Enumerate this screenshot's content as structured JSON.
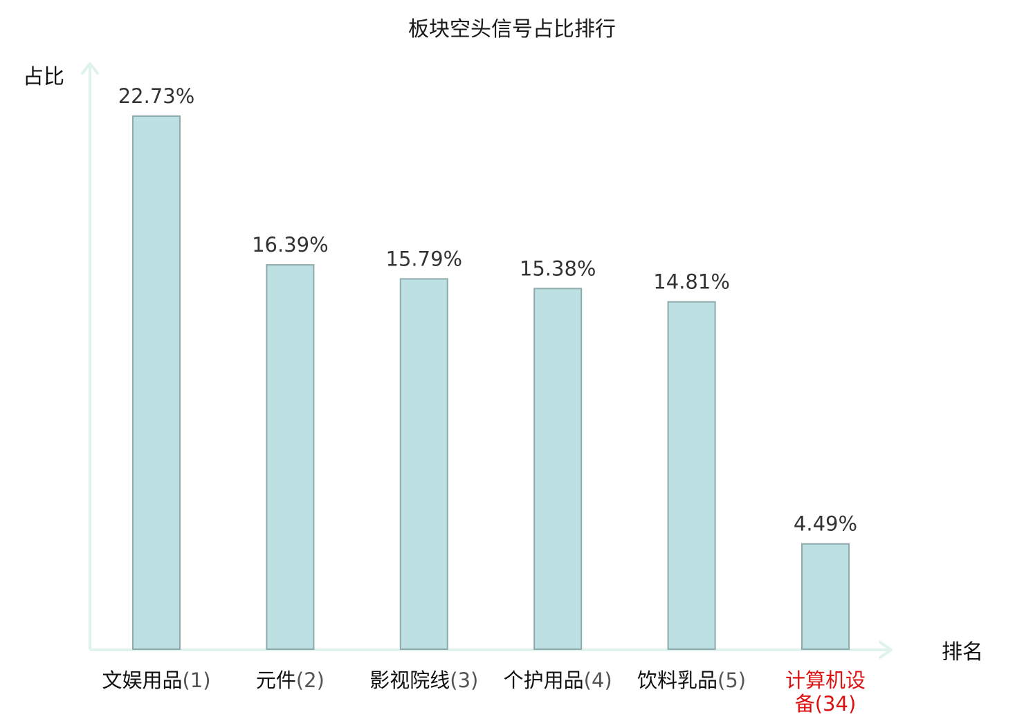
{
  "chart_data": {
    "type": "bar",
    "title": "板块空头信号占比排行",
    "ylabel": "占比",
    "xlabel": "排名",
    "categories": [
      {
        "name": "文娱用品",
        "rank": "(1)",
        "lines": [
          "文娱用品(1)"
        ]
      },
      {
        "name": "元件",
        "rank": "(2)",
        "lines": [
          "元件(2)"
        ]
      },
      {
        "name": "影视院线",
        "rank": "(3)",
        "lines": [
          "影视院线(3)"
        ]
      },
      {
        "name": "个护用品",
        "rank": "(4)",
        "lines": [
          "个护用品(4)"
        ]
      },
      {
        "name": "饮料乳品",
        "rank": "(5)",
        "lines": [
          "饮料乳品(5)"
        ]
      },
      {
        "name": "计算机设备",
        "rank": "(34)",
        "lines": [
          "计算机设",
          "备(34)"
        ],
        "highlight": true
      }
    ],
    "values": [
      22.73,
      16.39,
      15.79,
      15.38,
      14.81,
      4.49
    ],
    "value_labels": [
      "22.73%",
      "16.39%",
      "15.79%",
      "15.38%",
      "14.81%",
      "4.49%"
    ],
    "ylim": [
      0,
      22.73
    ],
    "grid": false,
    "legend": "none",
    "colors": {
      "bar_fill": "#bde0e3",
      "bar_stroke": "#8faaac",
      "axis": "#dff2ee",
      "highlight_text": "#dd1111"
    }
  }
}
